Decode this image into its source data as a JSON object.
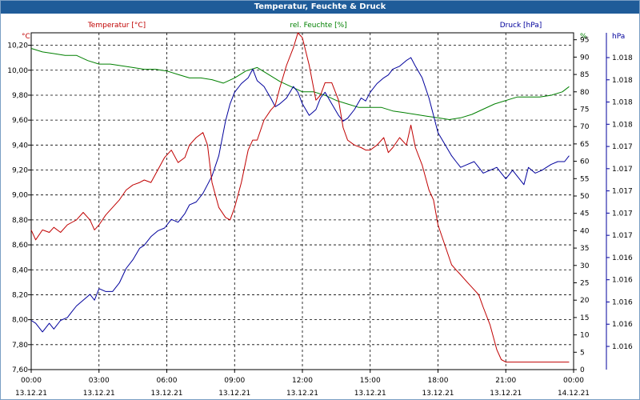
{
  "window": {
    "title": "Temperatur, Feuchte & Druck"
  },
  "legend": {
    "temp_label": "Temperatur [°C]",
    "hum_label": "rel. Feuchte [%]",
    "press_label": "Druck [hPa]"
  },
  "axis_units": {
    "left": "°C",
    "right_hum": "%",
    "right_press": "hPa"
  },
  "colors": {
    "temperature": "#c00000",
    "humidity": "#008000",
    "pressure": "#00009c",
    "title_bar": "#1f5c99",
    "grid": "#000000"
  },
  "chart_data": {
    "type": "line",
    "title": "Temperatur, Feuchte & Druck",
    "grid": true,
    "x_ticks": [
      {
        "time": "00:00",
        "date": "13.12.21"
      },
      {
        "time": "03:00",
        "date": "13.12.21"
      },
      {
        "time": "06:00",
        "date": "13.12.21"
      },
      {
        "time": "09:00",
        "date": "13.12.21"
      },
      {
        "time": "12:00",
        "date": "13.12.21"
      },
      {
        "time": "15:00",
        "date": "13.12.21"
      },
      {
        "time": "18:00",
        "date": "13.12.21"
      },
      {
        "time": "21:00",
        "date": "13.12.21"
      },
      {
        "time": "00:00",
        "date": "14.12.21"
      }
    ],
    "x_range_hours": [
      0,
      24
    ],
    "temperature": {
      "name": "Temperatur [°C]",
      "ylim": [
        7.6,
        10.3
      ],
      "ticks": [
        "7,60",
        "7,80",
        "8,00",
        "8,20",
        "8,40",
        "8,60",
        "8,80",
        "9,00",
        "9,20",
        "9,40",
        "9,60",
        "9,80",
        "10,00",
        "10,20"
      ],
      "x": [
        0,
        0.2,
        0.5,
        0.8,
        1.0,
        1.3,
        1.6,
        1.8,
        2.0,
        2.3,
        2.6,
        2.8,
        3.0,
        3.3,
        3.6,
        3.9,
        4.2,
        4.5,
        4.8,
        5.0,
        5.3,
        5.6,
        5.9,
        6.2,
        6.5,
        6.8,
        7.0,
        7.3,
        7.6,
        7.8,
        8.0,
        8.3,
        8.6,
        8.8,
        9.0,
        9.3,
        9.6,
        9.8,
        10.0,
        10.3,
        10.6,
        10.8,
        11.0,
        11.3,
        11.6,
        11.8,
        12.0,
        12.3,
        12.6,
        12.8,
        13.0,
        13.3,
        13.6,
        13.8,
        14.0,
        14.3,
        14.6,
        14.8,
        15.0,
        15.3,
        15.6,
        15.8,
        16.0,
        16.3,
        16.6,
        16.8,
        17.0,
        17.3,
        17.6,
        17.8,
        18.0,
        18.3,
        18.6,
        18.8,
        19.0,
        19.3,
        19.6,
        19.8,
        20.0,
        20.3,
        20.6,
        20.8,
        21.0,
        21.3,
        21.6,
        21.8,
        22.0,
        22.3,
        22.6,
        22.8,
        23.0,
        23.3,
        23.6,
        23.8
      ],
      "y": [
        8.72,
        8.64,
        8.72,
        8.7,
        8.74,
        8.7,
        8.76,
        8.78,
        8.8,
        8.86,
        8.8,
        8.72,
        8.76,
        8.84,
        8.9,
        8.96,
        9.04,
        9.08,
        9.1,
        9.12,
        9.1,
        9.2,
        9.3,
        9.36,
        9.26,
        9.3,
        9.4,
        9.46,
        9.5,
        9.4,
        9.1,
        8.9,
        8.82,
        8.8,
        8.9,
        9.1,
        9.36,
        9.44,
        9.44,
        9.6,
        9.68,
        9.72,
        9.86,
        10.04,
        10.18,
        10.3,
        10.26,
        10.04,
        9.76,
        9.8,
        9.9,
        9.9,
        9.76,
        9.54,
        9.44,
        9.4,
        9.38,
        9.36,
        9.36,
        9.4,
        9.46,
        9.34,
        9.38,
        9.46,
        9.4,
        9.56,
        9.38,
        9.24,
        9.04,
        8.96,
        8.76,
        8.6,
        8.44,
        8.4,
        8.36,
        8.3,
        8.24,
        8.2,
        8.1,
        7.96,
        7.76,
        7.68,
        7.66,
        7.66,
        7.66,
        7.66,
        7.66,
        7.66,
        7.66,
        7.66,
        7.66,
        7.66,
        7.66,
        7.66
      ]
    },
    "humidity": {
      "name": "rel. Feuchte [%]",
      "ylim": [
        0,
        97
      ],
      "ticks": [
        0,
        5,
        10,
        15,
        20,
        25,
        30,
        35,
        40,
        45,
        50,
        55,
        60,
        65,
        70,
        75,
        80,
        85,
        90,
        95
      ],
      "x": [
        0,
        0.5,
        1.0,
        1.5,
        2.0,
        2.5,
        3.0,
        3.5,
        4.0,
        4.5,
        5.0,
        5.5,
        6.0,
        6.5,
        7.0,
        7.5,
        8.0,
        8.5,
        9.0,
        9.5,
        10.0,
        10.5,
        11.0,
        11.5,
        12.0,
        12.5,
        13.0,
        13.5,
        14.0,
        14.5,
        15.0,
        15.5,
        16.0,
        16.5,
        17.0,
        17.5,
        18.0,
        18.5,
        19.0,
        19.5,
        20.0,
        20.5,
        21.0,
        21.5,
        22.0,
        22.5,
        23.0,
        23.5,
        23.8
      ],
      "y": [
        92.5,
        91.5,
        91,
        90.5,
        90.5,
        89,
        88,
        88,
        87.5,
        87,
        86.5,
        86.5,
        86,
        85,
        84,
        84,
        83.5,
        82.5,
        84,
        86,
        87,
        85,
        83,
        81.5,
        80,
        80,
        79,
        77.5,
        76.5,
        75.5,
        75.5,
        75.5,
        74.5,
        74,
        73.5,
        73,
        72.5,
        72,
        72.5,
        73.5,
        75,
        76.5,
        77.5,
        78.5,
        78.5,
        78.5,
        79,
        80,
        81.5
      ]
    },
    "pressure": {
      "name": "Druck [hPa]",
      "ticks": [
        "1.016",
        "1.016",
        "1.016",
        "1.016",
        "1.016",
        "1.017",
        "1.017",
        "1.017",
        "1.017",
        "1.017",
        "1.018",
        "1.018",
        "1.018",
        "1.018"
      ],
      "level_fraction_x": [
        0,
        0.2,
        0.5,
        0.8,
        1.0,
        1.3,
        1.6,
        1.8,
        2.0,
        2.3,
        2.6,
        2.8,
        3.0,
        3.3,
        3.6,
        3.9,
        4.2,
        4.5,
        4.8,
        5.0,
        5.3,
        5.6,
        5.9,
        6.2,
        6.5,
        6.8,
        7.0,
        7.3,
        7.6,
        7.8,
        8.0,
        8.3,
        8.6,
        8.8,
        9.0,
        9.3,
        9.6,
        9.8,
        10.0,
        10.3,
        10.6,
        10.8,
        11.0,
        11.3,
        11.6,
        11.8,
        12.0,
        12.3,
        12.6,
        12.8,
        13.0,
        13.3,
        13.6,
        13.8,
        14.0,
        14.3,
        14.6,
        14.8,
        15.0,
        15.3,
        15.6,
        15.8,
        16.0,
        16.3,
        16.6,
        16.8,
        17.0,
        17.3,
        17.6,
        17.8,
        18.0,
        18.3,
        18.6,
        18.8,
        19.0,
        19.3,
        19.6,
        19.8,
        20.0,
        20.3,
        20.6,
        20.8,
        21.0,
        21.3,
        21.6,
        21.8,
        22.0,
        22.3,
        22.6,
        22.8,
        23.0,
        23.3,
        23.6,
        23.8
      ],
      "level_fraction": [
        0.09,
        0.08,
        0.05,
        0.08,
        0.06,
        0.09,
        0.1,
        0.12,
        0.14,
        0.16,
        0.18,
        0.16,
        0.2,
        0.19,
        0.19,
        0.22,
        0.27,
        0.3,
        0.34,
        0.35,
        0.38,
        0.4,
        0.41,
        0.44,
        0.43,
        0.46,
        0.49,
        0.5,
        0.53,
        0.56,
        0.59,
        0.66,
        0.78,
        0.84,
        0.88,
        0.91,
        0.93,
        0.96,
        0.92,
        0.9,
        0.86,
        0.83,
        0.84,
        0.86,
        0.9,
        0.88,
        0.84,
        0.8,
        0.82,
        0.86,
        0.88,
        0.84,
        0.8,
        0.78,
        0.79,
        0.82,
        0.86,
        0.85,
        0.88,
        0.91,
        0.93,
        0.94,
        0.96,
        0.97,
        0.99,
        1.0,
        0.97,
        0.93,
        0.86,
        0.8,
        0.74,
        0.7,
        0.66,
        0.64,
        0.62,
        0.63,
        0.64,
        0.62,
        0.6,
        0.61,
        0.62,
        0.6,
        0.58,
        0.61,
        0.58,
        0.56,
        0.62,
        0.6,
        0.61,
        0.62,
        0.63,
        0.64,
        0.64,
        0.66
      ]
    }
  }
}
